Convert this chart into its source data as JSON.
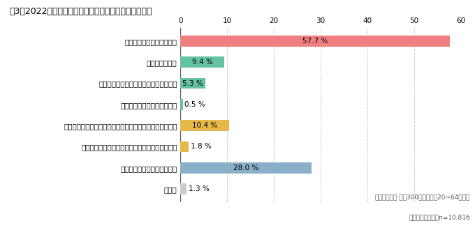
{
  "title": "図3　2022年のふるさと納税後の自治体への意識の変化",
  "categories": [
    "今後、もう一度寄附したい",
    "実際に訪問した",
    "まだ訪問していないが、訪問予定である",
    "二拠点目にしたり、移住した",
    "寄附先の産品を普段の買い物で意識的に選ぶようになった",
    "寄附先の祭りや文化、著名人等のファンになった",
    "親近感も愛着も湧かなかった",
    "その他"
  ],
  "values": [
    57.7,
    9.4,
    5.3,
    0.5,
    10.4,
    1.8,
    28.0,
    1.3
  ],
  "labels": [
    "57.7 %",
    "9.4 %",
    "5.3 %",
    "0.5 %",
    "10.4 %",
    "1.8 %",
    "28.0 %",
    "1.3 %"
  ],
  "colors": [
    "#f08080",
    "#66c2a5",
    "#66c2a5",
    "#66c2a5",
    "#e6b84a",
    "#e6b84a",
    "#8aafc8",
    "#c8cdd4"
  ],
  "xlim": [
    0,
    60
  ],
  "xticks": [
    0,
    10,
    20,
    30,
    40,
    50,
    60
  ],
  "footnote_line1": "対象者：有職·年収300万円以上の20~64歳男女",
  "footnote_line2": "サンプルサイズ：n=10,816",
  "background_color": "#ffffff",
  "grid_color": "#cccccc",
  "bar_height": 0.52,
  "title_fontsize": 9,
  "label_fontsize": 7.5,
  "tick_fontsize": 7.5,
  "value_fontsize": 7.5
}
